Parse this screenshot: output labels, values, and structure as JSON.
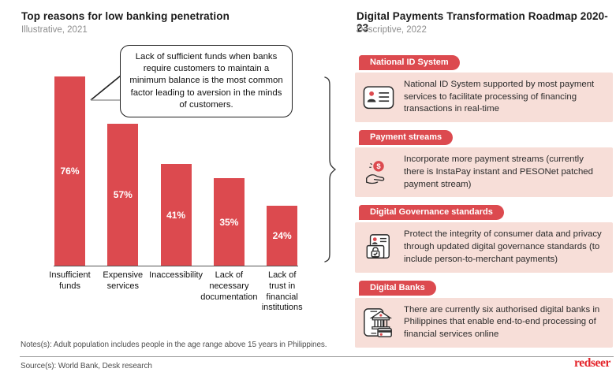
{
  "left": {
    "title": "Top reasons for low banking penetration",
    "subtitle": "Illustrative, 2021",
    "callout": "Lack of sufficient funds when banks require customers to maintain a minimum balance is the most common factor leading to aversion in the minds of customers."
  },
  "chart_data": {
    "type": "bar",
    "title": "Top reasons for low banking penetration",
    "categories": [
      "Insufficient funds",
      "Expensive services",
      "Inaccessibility",
      "Lack of necessary documentation",
      "Lack of trust in financial institutions"
    ],
    "category_lines": [
      [
        "Insufficient",
        "funds"
      ],
      [
        "Expensive",
        "services"
      ],
      [
        "Inaccessibility"
      ],
      [
        "Lack of",
        "necessary",
        "documentation"
      ],
      [
        "Lack of",
        "trust in",
        "financial",
        "institutions"
      ]
    ],
    "values": [
      76,
      57,
      41,
      35,
      24
    ],
    "value_labels": [
      "76%",
      "57%",
      "41%",
      "35%",
      "24%"
    ],
    "xlabel": "",
    "ylabel": "",
    "ylim": [
      0,
      80
    ],
    "grid": false,
    "legend": "none",
    "bar_color": "#DC4A4F"
  },
  "right": {
    "title": "Digital Payments Transformation Roadmap 2020-23",
    "subtitle": "Descriptive, 2022",
    "items": [
      {
        "label": "National ID System",
        "icon": "id-card-icon",
        "text": "National ID System supported by most payment services to facilitate processing of financing transactions in real-time"
      },
      {
        "label": "Payment streams",
        "icon": "hand-coin-icon",
        "text": "Incorporate more payment streams (currently there is InstaPay instant and PESONet patched payment stream)"
      },
      {
        "label": "Digital Governance standards",
        "icon": "privacy-folder-icon",
        "text": "Protect the integrity of consumer data and privacy through updated digital governance standards (to include person-to-merchant payments)"
      },
      {
        "label": "Digital Banks",
        "icon": "digital-bank-icon",
        "text": "There are currently six authorised digital banks in Philippines that enable end-to-end processing of financial services online"
      }
    ]
  },
  "footer": {
    "notes": "Notes(s): Adult population includes people in the age range above 15 years in Philippines.",
    "source": "Source(s): World Bank, Desk research",
    "logo": "redseer"
  },
  "colors": {
    "accent_red": "#DC4A4F",
    "card_pink": "#F7DED8",
    "logo_red": "#E4252B",
    "icon_stroke": "#2a2a2a"
  }
}
